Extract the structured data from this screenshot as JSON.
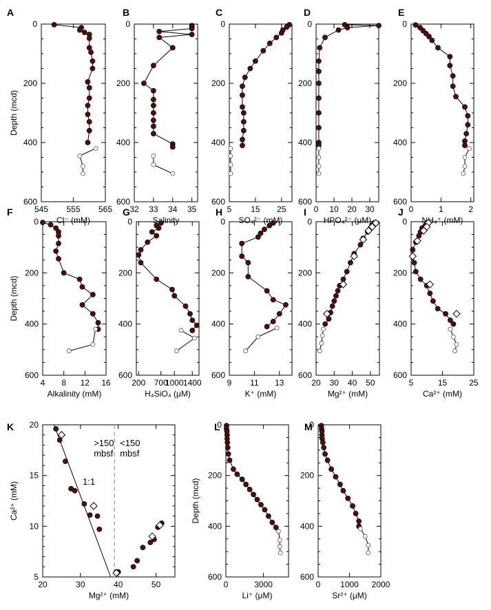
{
  "chart_data": [
    {
      "id": "A",
      "type": "line",
      "xlabel": "Cl⁻ (mM)",
      "ylabel": "Depth (mcd)",
      "xlim": [
        545,
        565
      ],
      "ylim": [
        600,
        0
      ],
      "xticks": [
        545,
        555,
        565
      ],
      "yticks": [
        0,
        200,
        400,
        600
      ],
      "series": [
        {
          "y": [
            2,
            12,
            20,
            28,
            35,
            48,
            80,
            95,
            125,
            150,
            195,
            215,
            250,
            275,
            305,
            330,
            360,
            400
          ],
          "x": [
            549,
            557.5,
            557,
            558.5,
            560,
            560,
            560,
            560.5,
            561,
            561,
            559.5,
            560,
            560,
            559.5,
            559.5,
            560,
            560,
            559.5
          ],
          "marker": "filled"
        },
        {
          "y": [
            420,
            445,
            480,
            505
          ],
          "x": [
            562,
            557,
            558,
            558
          ],
          "marker": "open"
        }
      ]
    },
    {
      "id": "B",
      "type": "line",
      "xlabel": "Salinity",
      "ylabel": "",
      "xlim": [
        32,
        35.3
      ],
      "ylim": [
        600,
        0
      ],
      "xticks": [
        32,
        33,
        34,
        35
      ],
      "yticks": [
        0,
        200,
        400,
        600
      ],
      "series": [
        {
          "y": [
            5,
            10,
            15,
            25,
            35,
            45,
            80,
            140,
            200,
            225,
            255,
            275,
            300,
            325,
            345,
            370,
            405,
            415
          ],
          "x": [
            35,
            35,
            35,
            33.3,
            35,
            33.3,
            34,
            33,
            32.5,
            33,
            33,
            33,
            33,
            33,
            33,
            33,
            34,
            34
          ],
          "marker": "filled"
        },
        {
          "y": [
            445,
            475,
            505
          ],
          "x": [
            33,
            33,
            34
          ],
          "marker": "open"
        }
      ]
    },
    {
      "id": "C",
      "type": "line",
      "xlabel": "SO₄²⁻ (mM)",
      "ylabel": "",
      "xlim": [
        5,
        29
      ],
      "ylim": [
        600,
        0
      ],
      "xticks": [
        5,
        15,
        25
      ],
      "yticks": [
        0,
        200,
        400,
        600
      ],
      "series": [
        {
          "y": [
            2,
            10,
            20,
            30,
            45,
            65,
            90,
            125,
            150,
            180,
            210,
            240,
            280,
            300,
            330,
            360,
            390,
            410
          ],
          "x": [
            28,
            27,
            25.5,
            25,
            23,
            20.5,
            18,
            15,
            13,
            11,
            10,
            10,
            10,
            10.5,
            10.5,
            10.5,
            10,
            10
          ],
          "marker": "filled"
        },
        {
          "y": [
            420,
            445,
            475,
            505
          ],
          "x": [
            5.5,
            5.5,
            5.5,
            5.5
          ],
          "marker": "open"
        }
      ]
    },
    {
      "id": "D",
      "type": "line",
      "xlabel": "HPO₄²⁻ (μM)",
      "ylabel": "",
      "xlim": [
        0,
        35
      ],
      "ylim": [
        600,
        0
      ],
      "xticks": [
        0,
        10,
        20,
        30
      ],
      "yticks": [
        0,
        200,
        400,
        600
      ],
      "series": [
        {
          "y": [
            2,
            5,
            12,
            20,
            45,
            80,
            125,
            160,
            200,
            250,
            300,
            350,
            400,
            410
          ],
          "x": [
            16,
            35,
            17.5,
            12.5,
            5,
            2,
            1.5,
            1.5,
            1.5,
            1.5,
            1.5,
            1.5,
            1.5,
            1.5
          ],
          "marker": "filled"
        },
        {
          "y": [
            420,
            450,
            480,
            505
          ],
          "x": [
            1.5,
            1.5,
            1.5,
            1.5
          ],
          "marker": "open"
        }
      ]
    },
    {
      "id": "E",
      "type": "line",
      "xlabel": "NH₄⁺ (mM)",
      "ylabel": "",
      "xlim": [
        0,
        2.1
      ],
      "ylim": [
        600,
        0
      ],
      "xticks": [
        0,
        1,
        2
      ],
      "yticks": [
        0,
        200,
        400,
        600
      ],
      "series": [
        {
          "y": [
            3,
            12,
            22,
            32,
            42,
            55,
            80,
            110,
            140,
            175,
            210,
            245,
            280,
            310,
            340,
            370,
            395,
            410
          ],
          "x": [
            0.15,
            0.3,
            0.4,
            0.5,
            0.6,
            0.7,
            0.9,
            1.3,
            1.3,
            1.4,
            1.4,
            1.5,
            1.8,
            1.9,
            1.9,
            1.85,
            1.8,
            1.8
          ],
          "marker": "filled"
        },
        {
          "y": [
            420,
            450,
            480,
            505
          ],
          "x": [
            1.95,
            1.8,
            1.8,
            1.75
          ],
          "marker": "open"
        }
      ]
    },
    {
      "id": "F",
      "type": "line",
      "xlabel": "Alkalinity (mM)",
      "ylabel": "Depth (mcd)",
      "xlim": [
        4,
        16
      ],
      "ylim": [
        600,
        0
      ],
      "xticks": [
        4,
        8,
        12,
        16
      ],
      "yticks": [
        0,
        200,
        400,
        600
      ],
      "series": [
        {
          "y": [
            3,
            12,
            25,
            40,
            55,
            85,
            115,
            145,
            200,
            225,
            255,
            285,
            325,
            360,
            395,
            420
          ],
          "x": [
            4,
            5.5,
            6.5,
            7,
            7,
            7,
            6.5,
            7,
            8,
            11,
            11.5,
            13.5,
            11.5,
            13.5,
            14.5,
            14.5
          ],
          "marker": "filled"
        },
        {
          "y": [
            420,
            480,
            505
          ],
          "x": [
            14,
            13.5,
            9
          ],
          "marker": "open"
        }
      ]
    },
    {
      "id": "G",
      "type": "line",
      "xlabel": "H₄SiO₄ (μM)",
      "ylabel": "",
      "xlim": [
        150,
        1550
      ],
      "ylim": [
        600,
        0
      ],
      "xticks": [
        200,
        700,
        1000,
        1400
      ],
      "yticks": [
        0,
        200,
        400,
        600
      ],
      "series": [
        {
          "y": [
            5,
            15,
            25,
            40,
            55,
            80,
            110,
            130,
            160,
            225,
            265,
            290,
            330,
            360,
            385,
            405,
            425
          ],
          "x": [
            700,
            600,
            650,
            500,
            600,
            400,
            250,
            200,
            250,
            600,
            950,
            1000,
            1250,
            1350,
            1400,
            1500,
            1400
          ],
          "marker": "filled"
        },
        {
          "y": [
            425,
            455,
            505
          ],
          "x": [
            1150,
            1450,
            1050
          ],
          "marker": "open"
        }
      ]
    },
    {
      "id": "H",
      "type": "line",
      "xlabel": "K⁺ (mM)",
      "ylabel": "",
      "xlim": [
        9,
        14
      ],
      "ylim": [
        600,
        0
      ],
      "xticks": [
        9,
        11,
        13
      ],
      "yticks": [
        0,
        200,
        400,
        600
      ],
      "series": [
        {
          "y": [
            5,
            15,
            30,
            45,
            60,
            85,
            135,
            160,
            215,
            270,
            305,
            325,
            360,
            390,
            410
          ],
          "x": [
            12.5,
            12.2,
            11.8,
            11.5,
            11.3,
            10,
            10,
            10.5,
            10.5,
            12,
            12.5,
            13.5,
            13,
            12.5,
            12
          ],
          "marker": "filled"
        },
        {
          "y": [
            415,
            450,
            505
          ],
          "x": [
            12.8,
            11.3,
            10.3
          ],
          "marker": "open"
        }
      ]
    },
    {
      "id": "I",
      "type": "line",
      "xlabel": "Mg²⁺ (mM)",
      "ylabel": "",
      "xlim": [
        20,
        55
      ],
      "ylim": [
        600,
        0
      ],
      "xticks": [
        20,
        30,
        40,
        50
      ],
      "yticks": [
        0,
        200,
        400,
        600
      ],
      "series": [
        {
          "y": [
            5,
            15,
            25,
            40,
            65,
            90,
            125,
            160,
            195,
            225,
            250,
            270,
            290,
            310,
            330,
            355,
            380,
            400
          ],
          "x": [
            52,
            51,
            50,
            48.5,
            46,
            44.5,
            41,
            39,
            37,
            35,
            33,
            32,
            31,
            30,
            29,
            28,
            27,
            25
          ],
          "marker": "filled"
        },
        {
          "y": [
            420,
            445,
            475,
            505
          ],
          "x": [
            24,
            23.5,
            23,
            22
          ],
          "marker": "open"
        },
        {
          "y": [
            5,
            20,
            35,
            70,
            135,
            245,
            360
          ],
          "x": [
            53,
            51,
            49,
            46,
            41,
            35,
            26
          ],
          "marker": "diamond",
          "line": false
        }
      ]
    },
    {
      "id": "J",
      "type": "line",
      "xlabel": "Ca²⁺ (mM)",
      "ylabel": "",
      "xlim": [
        5,
        25
      ],
      "ylim": [
        600,
        0
      ],
      "xticks": [
        5,
        15,
        25
      ],
      "yticks": [
        0,
        200,
        400,
        600
      ],
      "series": [
        {
          "y": [
            5,
            15,
            25,
            40,
            55,
            80,
            110,
            135,
            160,
            195,
            225,
            250,
            280,
            310,
            340,
            360,
            385,
            400
          ],
          "x": [
            10,
            9.5,
            8.5,
            8,
            7.5,
            6.5,
            5.5,
            5.5,
            6,
            6.5,
            8,
            10,
            11,
            12,
            13.5,
            16,
            17.5,
            18.5
          ],
          "marker": "filled"
        },
        {
          "y": [
            420,
            450,
            480,
            505
          ],
          "x": [
            17.5,
            18.5,
            19.5,
            19
          ],
          "marker": "open"
        },
        {
          "y": [
            5,
            20,
            35,
            75,
            135,
            245,
            360
          ],
          "x": [
            10.5,
            10,
            9,
            7,
            5.5,
            11,
            19.5
          ],
          "marker": "diamond",
          "line": false
        }
      ]
    },
    {
      "id": "K",
      "type": "scatter",
      "xlabel": "Mg²⁺ (mM)",
      "ylabel": "Ca²⁺ (mM)",
      "xlim": [
        20,
        55
      ],
      "ylim": [
        5,
        20
      ],
      "xticks": [
        20,
        30,
        40,
        50
      ],
      "yticks": [
        5,
        10,
        15,
        20
      ],
      "annotations": [
        ">150",
        "mbsf",
        "<150",
        "mbsf",
        "1:1"
      ],
      "divider_x": 39,
      "fit_line": {
        "x": [
          23,
          38
        ],
        "y": [
          20,
          5
        ]
      },
      "series": [
        {
          "x": [
            23.5,
            24.5,
            26,
            27.5,
            28.5,
            31,
            32.5,
            35,
            34.5,
            40,
            39.5,
            44,
            45,
            46.5,
            48.5,
            49.5,
            50.5,
            51.5
          ],
          "y": [
            19.6,
            18.5,
            16.4,
            13.7,
            13.5,
            12.2,
            11.1,
            9.7,
            11,
            5.5,
            5.5,
            6,
            6.6,
            7.9,
            8.4,
            8.7,
            9.9,
            10.3
          ],
          "marker": "filled"
        },
        {
          "x": [
            25,
            33.5,
            39.5,
            49,
            51
          ],
          "y": [
            19.0,
            12.0,
            5.4,
            9.0,
            10.1
          ],
          "marker": "diamond"
        }
      ]
    },
    {
      "id": "L",
      "type": "line",
      "xlabel": "Li⁺ (μM)",
      "ylabel": "Depth (mcd)",
      "xlim": [
        0,
        5000
      ],
      "ylim": [
        600,
        0
      ],
      "xticks": [
        0,
        3000
      ],
      "yticks": [
        0,
        200,
        400,
        600
      ],
      "series": [
        {
          "y": [
            3,
            15,
            25,
            40,
            55,
            70,
            90,
            115,
            140,
            175,
            195,
            215,
            235,
            255,
            275,
            295,
            315,
            335,
            360,
            385,
            405
          ],
          "x": [
            50,
            50,
            80,
            100,
            100,
            120,
            150,
            200,
            300,
            600,
            900,
            1300,
            1600,
            1900,
            2200,
            2500,
            2800,
            3100,
            3400,
            3700,
            4000
          ],
          "marker": "filled"
        },
        {
          "y": [
            420,
            455,
            480,
            505
          ],
          "x": [
            4200,
            4300,
            4300,
            4350
          ],
          "marker": "open"
        }
      ]
    },
    {
      "id": "M",
      "type": "line",
      "xlabel": "Sr²⁺ (μM)",
      "ylabel": "",
      "xlim": [
        0,
        2000
      ],
      "ylim": [
        600,
        0
      ],
      "xticks": [
        0,
        1000,
        2000
      ],
      "yticks": [
        0,
        200,
        400,
        600
      ],
      "series": [
        {
          "y": [
            3,
            15,
            25,
            40,
            55,
            70,
            90,
            115,
            140,
            175,
            205,
            235,
            260,
            290,
            320,
            350,
            380,
            400
          ],
          "x": [
            100,
            110,
            120,
            120,
            130,
            150,
            180,
            220,
            300,
            420,
            560,
            700,
            800,
            950,
            1100,
            1200,
            1300,
            1300
          ],
          "marker": "filled"
        },
        {
          "y": [
            410,
            440,
            475,
            505
          ],
          "x": [
            1350,
            1500,
            1600,
            1600
          ],
          "marker": "open"
        }
      ]
    }
  ]
}
